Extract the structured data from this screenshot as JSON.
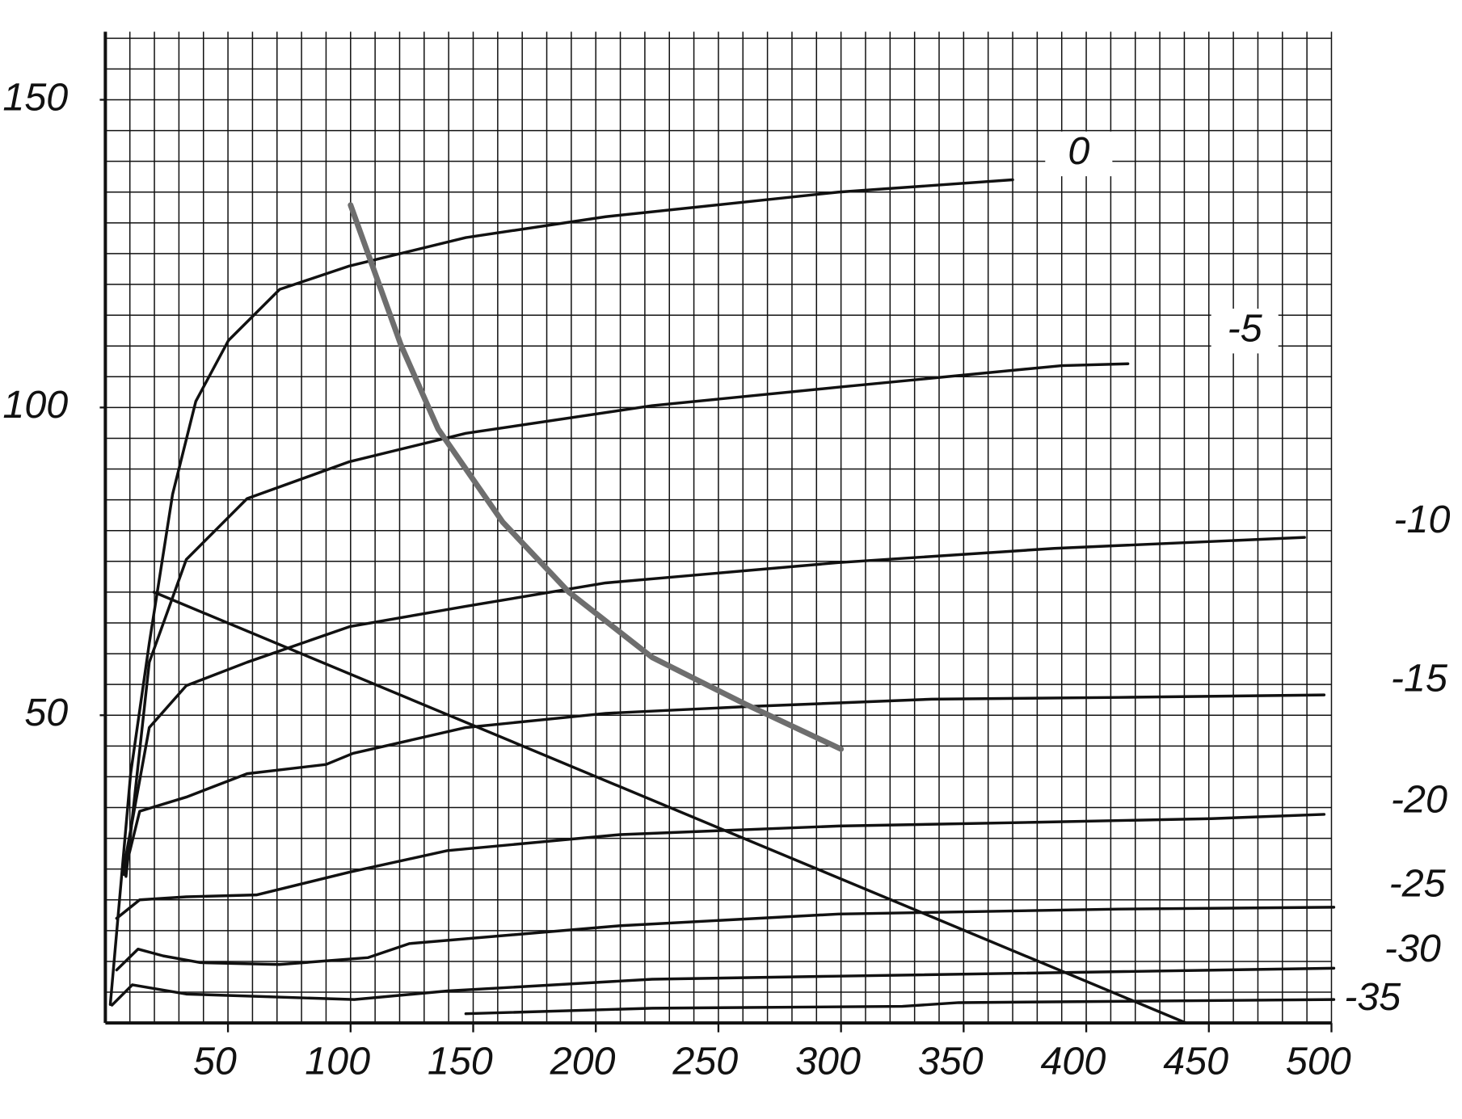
{
  "chart_data": {
    "type": "line",
    "xlim": [
      0,
      500
    ],
    "ylim": [
      0,
      160
    ],
    "xticks": [
      50,
      100,
      150,
      200,
      250,
      300,
      350,
      400,
      450,
      500
    ],
    "yticks": [
      50,
      100,
      150
    ],
    "xgrid": [
      10,
      20,
      30,
      40,
      50,
      60,
      70,
      80,
      90,
      100,
      110,
      120,
      130,
      140,
      150,
      160,
      170,
      180,
      190,
      200,
      210,
      220,
      230,
      240,
      250,
      260,
      270,
      280,
      290,
      300,
      310,
      320,
      330,
      340,
      350,
      360,
      370,
      380,
      390,
      400,
      410,
      420,
      430,
      440,
      450,
      460,
      470,
      480,
      490,
      500
    ],
    "ygrid": [
      5,
      10,
      15,
      20,
      25,
      30,
      35,
      40,
      45,
      50,
      55,
      60,
      65,
      70,
      75,
      80,
      85,
      90,
      95,
      100,
      105,
      110,
      115,
      120,
      125,
      130,
      135,
      140,
      145,
      150,
      155,
      160
    ],
    "grid": true,
    "series": [
      {
        "name": "0",
        "color": "#111111",
        "x": [
          2,
          10.3,
          17.9,
          27.4,
          36.9,
          50.2,
          71.1,
          99.6,
          147,
          204,
          299,
          370
        ],
        "values": [
          3,
          40.5,
          61.7,
          85.9,
          101,
          110.9,
          119.2,
          123,
          127.6,
          131,
          135,
          137
        ]
      },
      {
        "name": "-5",
        "color": "#111111",
        "x": [
          8.4,
          17.9,
          33,
          57.8,
          99.6,
          147,
          223,
          299,
          390,
          417
        ],
        "values": [
          23.8,
          58.6,
          75.3,
          85.2,
          91.2,
          95.8,
          100.3,
          103.3,
          106.8,
          107.1
        ]
      },
      {
        "name": "-10",
        "color": "#111111",
        "x": [
          7.2,
          17.9,
          33,
          57.8,
          99.6,
          147,
          204,
          299,
          387,
          489
        ],
        "values": [
          24.5,
          48,
          54.8,
          58.6,
          64.4,
          67.7,
          71.5,
          74.8,
          77.1,
          78.9
        ]
      },
      {
        "name": "-15",
        "color": "#111111",
        "x": [
          7.6,
          14,
          33,
          57.8,
          90,
          101,
          147,
          204,
          261,
          337,
          413,
          497
        ],
        "values": [
          24.1,
          34.4,
          36.7,
          40.5,
          42,
          43.8,
          48,
          50.3,
          51.4,
          52.6,
          52.9,
          53.3
        ]
      },
      {
        "name": "-20",
        "color": "#111111",
        "x": [
          4.6,
          14,
          33,
          61.6,
          99.6,
          139.5,
          210,
          299,
          379,
          451,
          497
        ],
        "values": [
          17,
          20,
          20.5,
          20.8,
          24.5,
          28,
          30.6,
          32,
          32.6,
          33.2,
          33.9
        ]
      },
      {
        "name": "-25",
        "color": "#111111",
        "x": [
          4.6,
          13.3,
          23.6,
          38.8,
          71,
          107,
          124,
          210,
          299,
          413,
          501
        ],
        "values": [
          8.6,
          12,
          10.9,
          9.8,
          9.5,
          10.6,
          12.9,
          15.8,
          17.7,
          18.5,
          18.8
        ]
      },
      {
        "name": "-30",
        "color": "#111111",
        "x": [
          2.7,
          11,
          33,
          101.5,
          139.5,
          223,
          299,
          501
        ],
        "values": [
          2.9,
          6.2,
          4.7,
          3.8,
          5.2,
          7.1,
          7.6,
          8.9
        ]
      },
      {
        "name": "-35",
        "color": "#111111",
        "x": [
          147,
          223,
          325,
          348,
          501
        ],
        "values": [
          1.5,
          2.4,
          2.7,
          3.3,
          3.8
        ]
      },
      {
        "color": "#111111",
        "x": [
          19.8,
          440.7
        ],
        "values": [
          70,
          0
        ]
      },
      {
        "color": "#6e6e6e",
        "x": [
          100,
          120.5,
          135.7,
          162,
          189,
          223,
          261,
          300
        ],
        "values": [
          132.9,
          110.2,
          96.5,
          81.4,
          70,
          59.4,
          51.8,
          44.5
        ]
      }
    ]
  }
}
